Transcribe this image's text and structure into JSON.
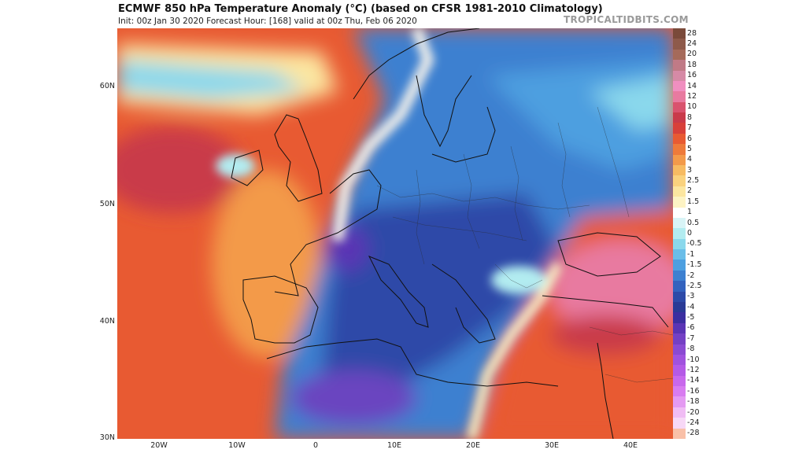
{
  "header": {
    "title": "ECMWF 850 hPa Temperature Anomaly (°C) (based on CFSR 1981-2010 Climatology)",
    "subtitle": "Init: 00z Jan 30 2020   Forecast Hour: [168]   valid at 00z Thu, Feb 06 2020",
    "brand": "TROPICALTIDBITS.COM"
  },
  "axes": {
    "lat_labels": [
      "60N",
      "50N",
      "40N",
      "30N"
    ],
    "lon_labels": [
      "20W",
      "10W",
      "0",
      "10E",
      "20E",
      "30E",
      "40E"
    ]
  },
  "colorbar": {
    "labels": [
      "28",
      "24",
      "20",
      "18",
      "16",
      "14",
      "12",
      "10",
      "8",
      "7",
      "6",
      "5",
      "4",
      "3",
      "2.5",
      "2",
      "1.5",
      "1",
      "0.5",
      "0",
      "-0.5",
      "-1",
      "-1.5",
      "-2",
      "-2.5",
      "-3",
      "-4",
      "-5",
      "-6",
      "-7",
      "-8",
      "-10",
      "-12",
      "-14",
      "-16",
      "-18",
      "-20",
      "-24",
      "-28"
    ],
    "colors": [
      "#7a4a3a",
      "#8e5a4a",
      "#a56a5a",
      "#c07a86",
      "#d68aa6",
      "#f08fc0",
      "#e87aa0",
      "#d9536e",
      "#c93a4a",
      "#d8403a",
      "#e85a32",
      "#ee7a3a",
      "#f39a4a",
      "#f7bb62",
      "#fad27e",
      "#fce6a0",
      "#fdf3c4",
      "#ffffff",
      "#d8f4f6",
      "#b2ecf0",
      "#8ad8ec",
      "#6abde8",
      "#4d9fe0",
      "#3d80d0",
      "#3362be",
      "#2d4aa8",
      "#2a3a96",
      "#3b2ea0",
      "#5a34b4",
      "#7440c4",
      "#8a4ad2",
      "#a052de",
      "#b45ae6",
      "#c868ec",
      "#d87cf0",
      "#e49af2",
      "#f0bcf4",
      "#f7d8f6",
      "#f9c0a8"
    ]
  },
  "palette": {
    "warm_deep": "#c93a4a",
    "warm": "#e85a32",
    "warm_light": "#f7bb62",
    "neutral": "#f4f1ea",
    "cool_light": "#8ad8ec",
    "cool": "#3d80d0",
    "cool_deep": "#2d4aa8",
    "purple": "#6a44c0",
    "pink": "#e87aa0",
    "coast": "#111111"
  }
}
